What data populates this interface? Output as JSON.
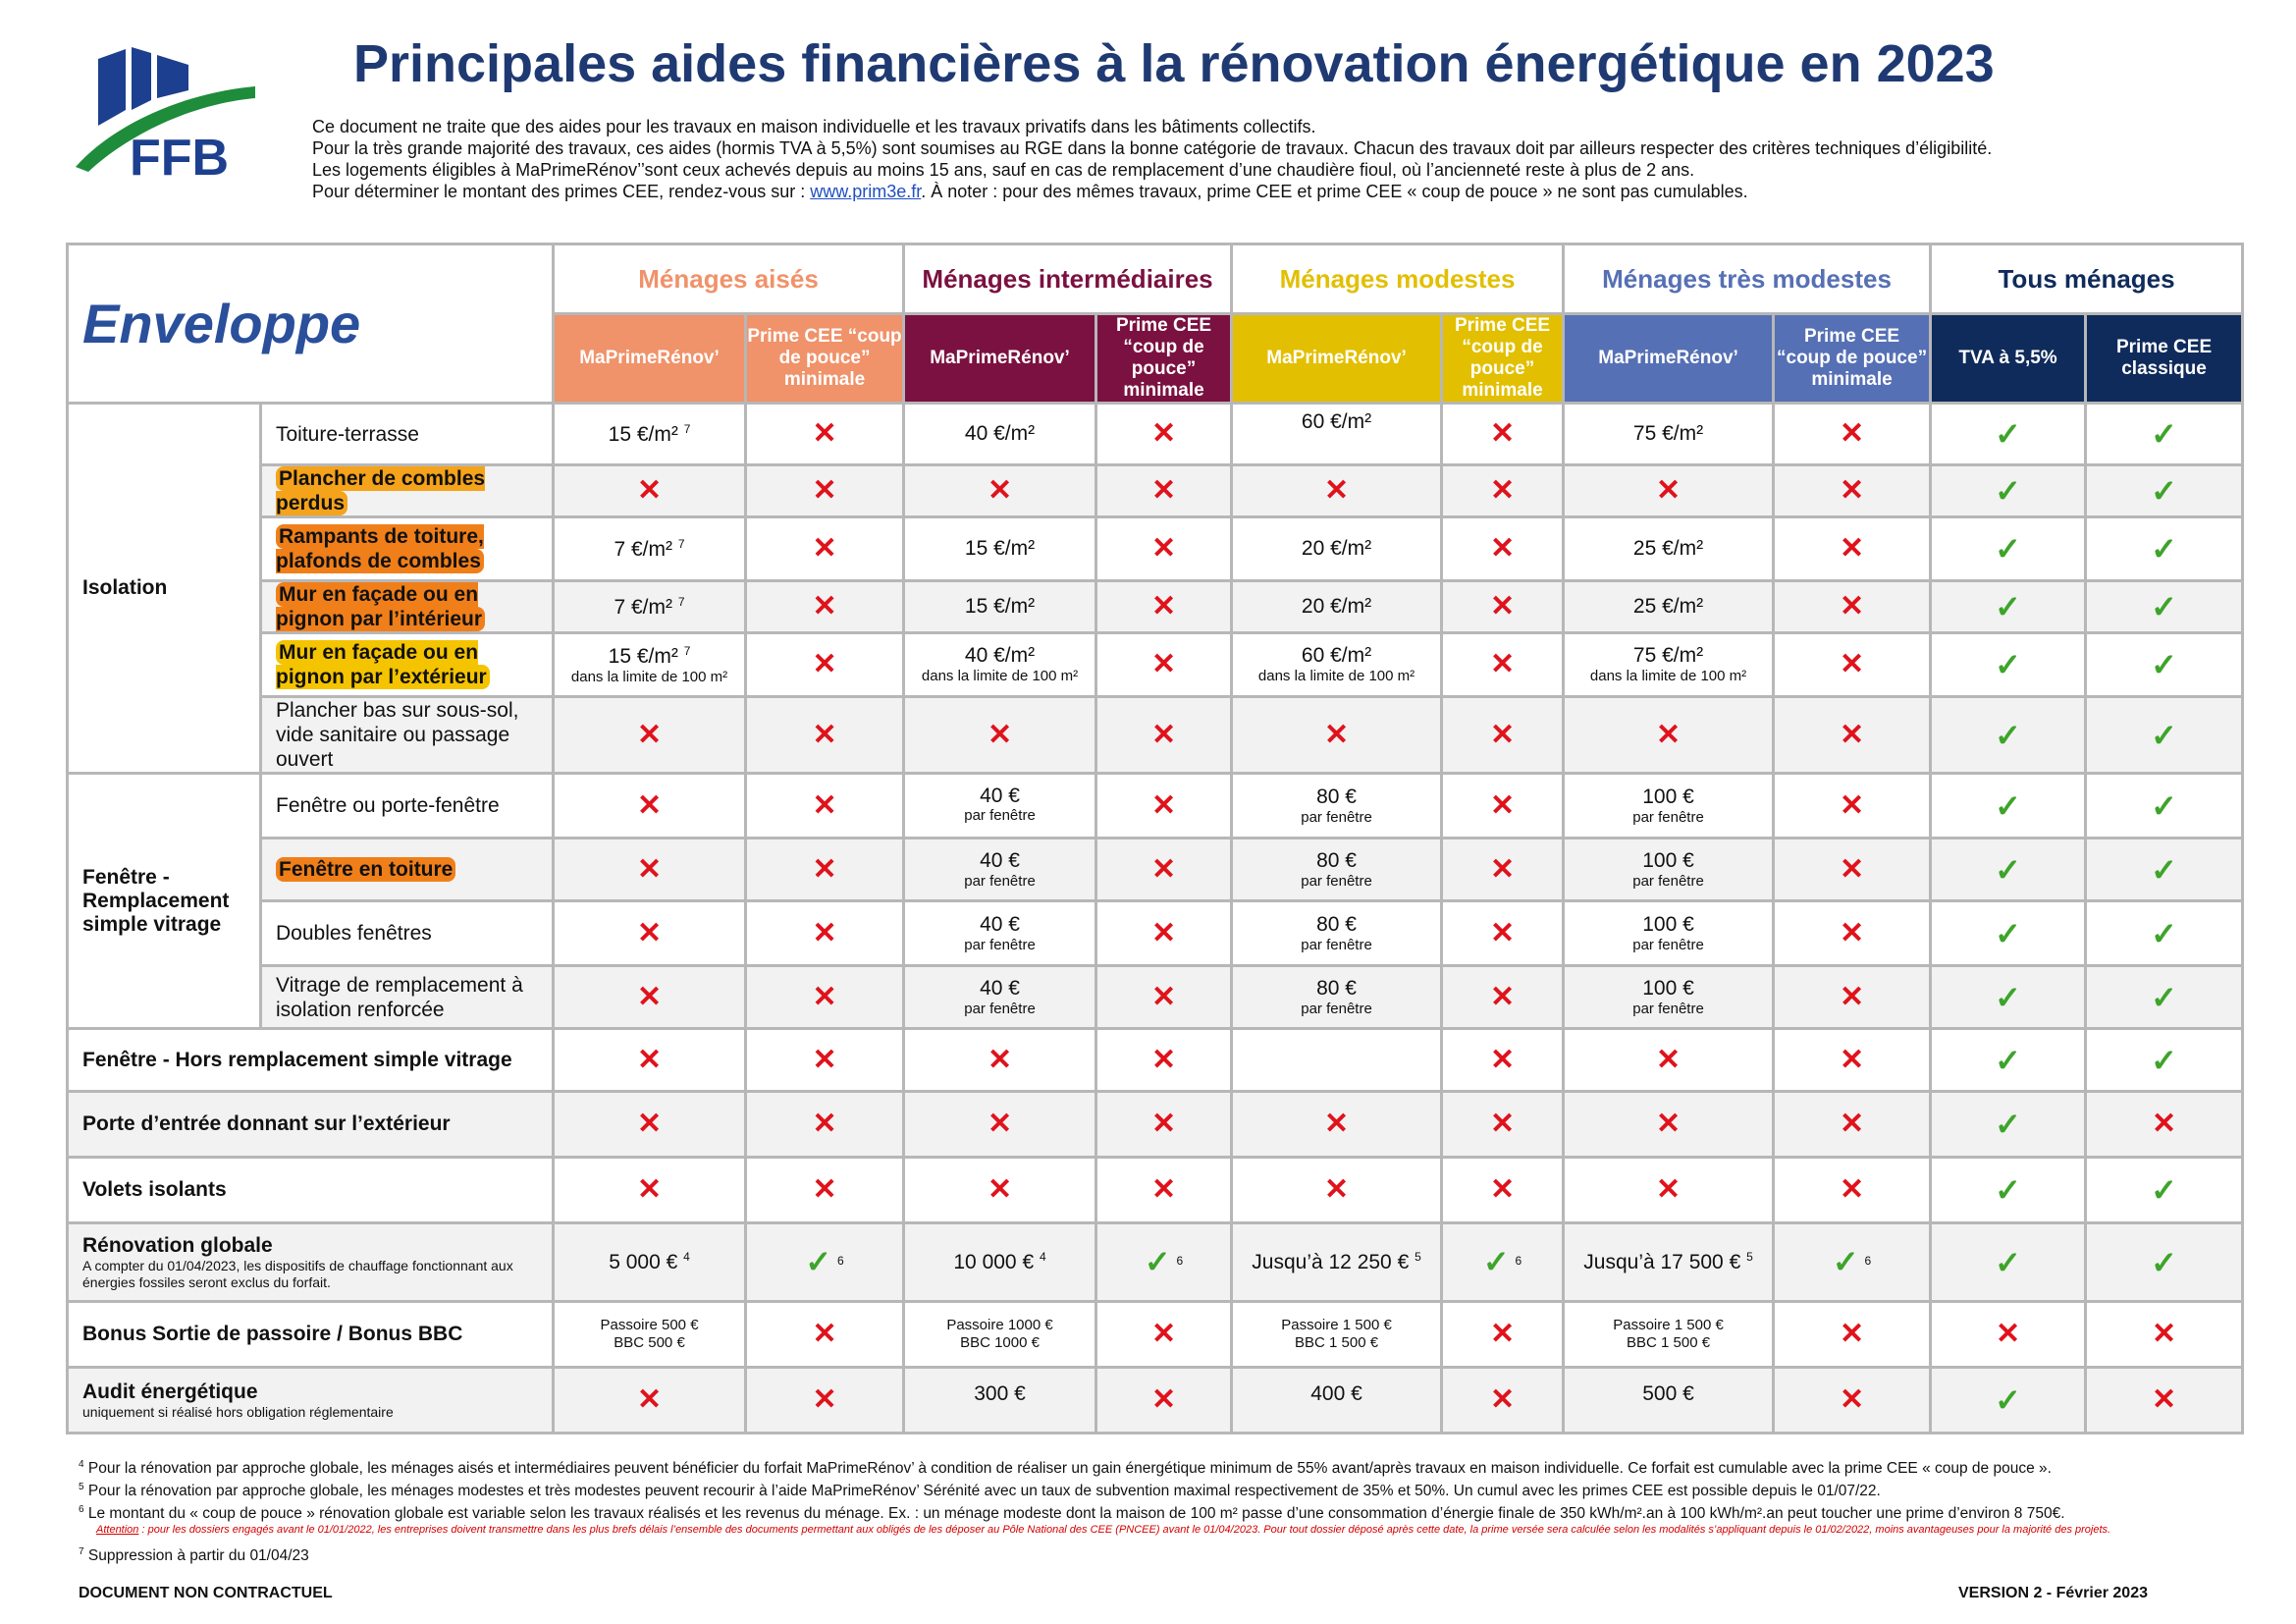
{
  "logo_text": "FFB",
  "title": "Principales aides financières à la rénovation énergétique en 2023",
  "intro": {
    "line1": "Ce document ne traite que des aides pour les travaux en maison individuelle et les travaux privatifs dans les bâtiments collectifs.",
    "line2": "Pour la très grande majorité des travaux, ces aides (hormis TVA à 5,5%) sont soumises au RGE dans la bonne catégorie de travaux. Chacun des travaux doit par ailleurs respecter des critères techniques d’éligibilité.",
    "line3": "Les logements éligibles à MaPrimeRénov’’sont ceux achevés depuis au moins 15 ans, sauf en cas de remplacement d’une chaudière fioul, où l’ancienneté reste à plus de 2 ans.",
    "line4_pre": "Pour déterminer le montant des primes CEE, rendez-vous sur : ",
    "link": "www.prim3e.fr",
    "line4_post": ". À noter : pour des mêmes travaux, prime CEE et prime CEE « coup de pouce » ne sont pas cumulables."
  },
  "table": {
    "section": "Enveloppe",
    "groups": {
      "aises": "Ménages aisés",
      "inter": "Ménages intermédiaires",
      "modestes": "Ménages modestes",
      "tres": "Ménages très modestes",
      "tous": "Tous ménages"
    },
    "sub": {
      "mpr": "MaPrimeRénov’",
      "cdp": "Prime CEE “coup de pouce” minimale",
      "tva": "TVA à 5,5%",
      "cee": "Prime CEE classique"
    },
    "cat": {
      "isolation": "Isolation",
      "fenetre": "Fenêtre - Remplacement simple vitrage",
      "fenetre_hors": "Fenêtre - Hors remplacement simple vitrage",
      "porte": "Porte d’entrée donnant sur l’extérieur",
      "volets": "Volets isolants",
      "renov": "Rénovation globale",
      "renov_note": "A compter du 01/04/2023, les dispositifs de chauffage fonctionnant aux énergies fossiles seront exclus du forfait.",
      "bonus": "Bonus Sortie de passoire / Bonus BBC",
      "audit": "Audit énergétique",
      "audit_note": "uniquement si réalisé hors obligation réglementaire"
    },
    "items": {
      "toiture": "Toiture-terrasse",
      "plancher_combles": "Plancher de combles perdus",
      "rampants": "Rampants de toiture, plafonds de combles",
      "mur_int": "Mur en façade ou en pignon par l’intérieur",
      "mur_ext": "Mur en façade ou en pignon par l’extérieur",
      "plancher_bas": "Plancher bas sur sous-sol, vide sanitaire ou passage ouvert",
      "fenetre_pf": "Fenêtre ou porte-fenêtre",
      "fenetre_toit": "Fenêtre en toiture",
      "doubles": "Doubles fenêtres",
      "vitrage": "Vitrage de remplacement à isolation renforcée"
    },
    "values": {
      "v15": "15 €/m²",
      "v40": "40 €/m²",
      "v60": "60 €/m²",
      "v75": "75 €/m²",
      "v7": "7 €/m²",
      "v20": "20 €/m²",
      "v25": "25 €/m²",
      "limite": "dans la limite de 100 m²",
      "f40": "40 €",
      "f80": "80 €",
      "f100": "100 €",
      "par_fenetre": "par fenêtre",
      "rg_aises": "5 000 €",
      "rg_inter": "10 000 €",
      "rg_mod": "Jusqu’à 12 250 €",
      "rg_tres": "Jusqu’à 17 500 €",
      "b_aises1": "Passoire 500 €",
      "b_aises2": "BBC 500 €",
      "b_inter1": "Passoire 1000 €",
      "b_inter2": "BBC 1000 €",
      "b_mod1": "Passoire 1 500 €",
      "b_mod2": "BBC 1 500 €",
      "a_inter": "300 €",
      "a_mod": "400 €",
      "a_tres": "500 €",
      "sup4": "4",
      "sup5": "5",
      "sup6": "6",
      "sup7": "7"
    }
  },
  "footnotes": {
    "n4": "Pour la rénovation par approche globale, les ménages aisés et intermédiaires peuvent bénéficier du forfait MaPrimeRénov’ à condition de réaliser un gain énergétique minimum de 55% avant/après travaux en maison individuelle. Ce forfait est cumulable avec la prime CEE « coup de pouce ».",
    "n5": "Pour la rénovation par approche globale, les ménages modestes et très modestes peuvent recourir à l’aide MaPrimeRénov’ Sérénité avec un taux de subvention maximal respectivement de 35% et 50%. Un cumul avec les primes CEE est possible depuis le 01/07/22.",
    "n6": "Le montant du « coup de pouce » rénovation globale est variable selon les travaux réalisés et les revenus du ménage. Ex. : un ménage modeste dont la maison de 100 m² passe d’une consommation d’énergie finale de 350 kWh/m².an à 100 kWh/m².an peut toucher une prime d’environ 8 750€.",
    "attention_label": "Attention",
    "attention": " : pour les dossiers engagés avant le 01/01/2022, les entreprises doivent transmettre dans les plus brefs délais l’ensemble des documents permettant aux obligés de les déposer au Pôle National des CEE (PNCEE) avant le 01/04/2023. Pour tout dossier déposé après cette date, la prime versée sera calculée selon les modalités s’appliquant depuis le 01/02/2022, moins avantageuses pour la majorité des projets.",
    "n7": "Suppression à partir du 01/04/23"
  },
  "bottom_left": "DOCUMENT NON CONTRACTUEL",
  "bottom_right": "VERSION 2 - Février 2023",
  "colors": {
    "aises": "#f0926a",
    "inter": "#7b1140",
    "modestes": "#e2bf00",
    "tres": "#5670b5",
    "tous": "#0f2b5b",
    "cross": "#e0121b",
    "check": "#3da42a"
  }
}
